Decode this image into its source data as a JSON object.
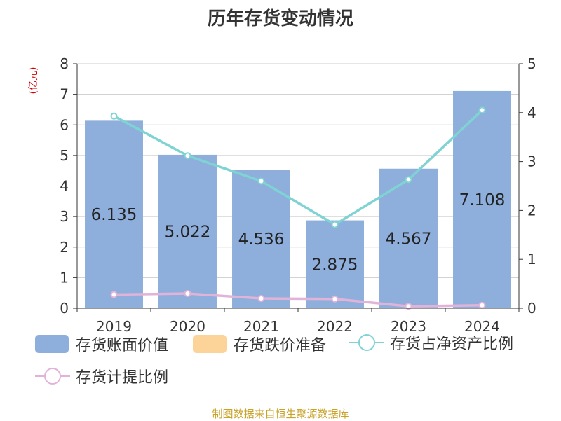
{
  "chart_data": {
    "type": "bar",
    "title": "历年存货变动情况",
    "unit_left": "(亿元)",
    "categories": [
      "2019",
      "2020",
      "2021",
      "2022",
      "2023",
      "2024"
    ],
    "left_axis": {
      "min": 0,
      "max": 8,
      "ticks": [
        "0",
        "1",
        "2",
        "3",
        "4",
        "5",
        "6",
        "7",
        "8"
      ]
    },
    "right_axis": {
      "min": 0,
      "max": 5,
      "ticks": [
        "0",
        "1",
        "2",
        "3",
        "4",
        "5"
      ]
    },
    "grid": true,
    "legend_position": "bottom",
    "series": [
      {
        "name": "存货账面价值",
        "type": "bar",
        "axis": "left",
        "color": "#8eaedc",
        "values": [
          6.135,
          5.022,
          4.536,
          2.875,
          4.567,
          7.108
        ],
        "labels": [
          "6.135",
          "5.022",
          "4.536",
          "2.875",
          "4.567",
          "7.108"
        ]
      },
      {
        "name": "存货跌价准备",
        "type": "bar",
        "axis": "left",
        "color": "#fcd49a",
        "values": [
          0,
          0,
          0,
          0,
          0,
          0
        ]
      },
      {
        "name": "存货占净资产比例",
        "type": "line",
        "axis": "right",
        "color": "#7fd3d3",
        "values": [
          3.93,
          3.12,
          2.6,
          1.71,
          2.63,
          4.05
        ]
      },
      {
        "name": "存货计提比例",
        "type": "line",
        "axis": "right",
        "color": "#e2b3d8",
        "values": [
          0.28,
          0.3,
          0.2,
          0.19,
          0.04,
          0.06
        ]
      }
    ]
  },
  "source_text": "制图数据来自恒生聚源数据库"
}
